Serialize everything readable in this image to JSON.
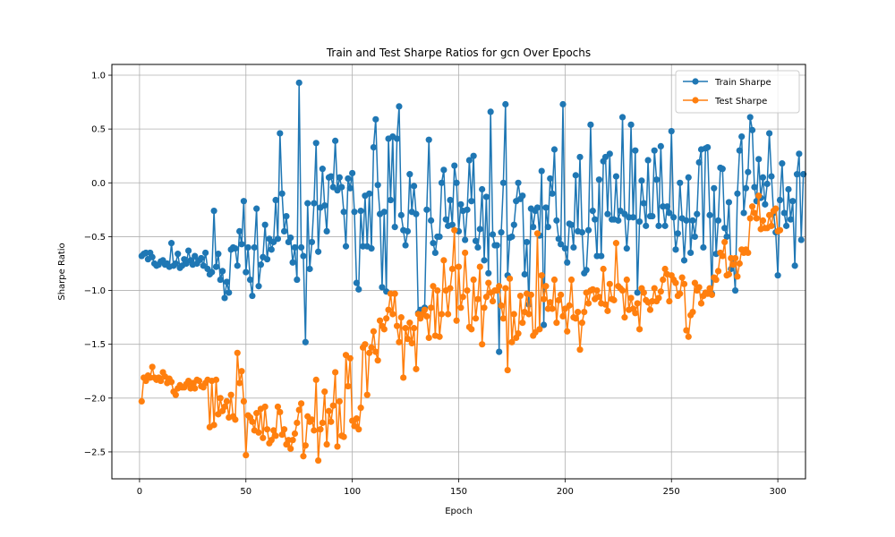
{
  "chart_data": {
    "type": "line",
    "title": "Train and Test Sharpe Ratios for gcn Over Epochs",
    "xlabel": "Epoch",
    "ylabel": "Sharpe Ratio",
    "xlim": [
      -13,
      313
    ],
    "ylim": [
      -2.75,
      1.1
    ],
    "xticks": [
      0,
      50,
      100,
      150,
      200,
      250,
      300
    ],
    "yticks": [
      -2.5,
      -2.0,
      -1.5,
      -1.0,
      -0.5,
      0.0,
      0.5,
      1.0
    ],
    "xtick_labels": [
      "0",
      "50",
      "100",
      "150",
      "200",
      "250",
      "300"
    ],
    "ytick_labels": [
      "−2.5",
      "−2.0",
      "−1.5",
      "−1.0",
      "−0.5",
      "0.0",
      "0.5",
      "1.0"
    ],
    "grid": true,
    "legend_position": "top-right",
    "x_start": 1,
    "series": [
      {
        "name": "Train Sharpe",
        "color": "#1f77b4",
        "values": [
          -0.68,
          -0.66,
          -0.65,
          -0.71,
          -0.65,
          -0.69,
          -0.75,
          -0.77,
          -0.76,
          -0.73,
          -0.72,
          -0.76,
          -0.75,
          -0.78,
          -0.56,
          -0.77,
          -0.75,
          -0.66,
          -0.79,
          -0.77,
          -0.71,
          -0.75,
          -0.63,
          -0.72,
          -0.76,
          -0.68,
          -0.75,
          -0.72,
          -0.7,
          -0.77,
          -0.65,
          -0.8,
          -0.85,
          -0.83,
          -0.26,
          -0.78,
          -0.66,
          -0.9,
          -0.82,
          -1.07,
          -0.92,
          -1.02,
          -0.62,
          -0.6,
          -0.61,
          -0.77,
          -0.45,
          -0.57,
          -0.17,
          -0.83,
          -0.6,
          -0.9,
          -1.05,
          -0.6,
          -0.24,
          -0.96,
          -0.76,
          -0.69,
          -0.39,
          -0.71,
          -0.52,
          -0.62,
          -0.55,
          -0.16,
          -0.52,
          0.46,
          -0.1,
          -0.45,
          -0.31,
          -0.55,
          -0.51,
          -0.74,
          -0.6,
          -0.9,
          0.93,
          -0.6,
          -0.68,
          -1.48,
          -0.19,
          -0.8,
          -0.55,
          -0.19,
          0.37,
          -0.64,
          -0.23,
          0.13,
          -0.21,
          -0.45,
          0.05,
          0.06,
          -0.04,
          0.39,
          -0.07,
          0.05,
          -0.04,
          -0.27,
          -0.59,
          0.04,
          -0.05,
          0.09,
          -0.27,
          -0.93,
          -0.99,
          -0.26,
          -0.59,
          -0.12,
          -0.59,
          -0.1,
          -0.61,
          0.33,
          0.59,
          -0.02,
          -0.29,
          -0.97,
          -0.27,
          -1.01,
          0.41,
          -0.16,
          0.43,
          -0.41,
          0.41,
          0.71,
          -0.3,
          -0.44,
          -0.58,
          -0.45,
          0.08,
          -0.27,
          -0.03,
          -0.29,
          -1.21,
          -1.18,
          -1.22,
          -1.16,
          -0.25,
          0.4,
          -0.35,
          -0.56,
          -0.65,
          -0.5,
          -0.5,
          0.0,
          0.12,
          -0.34,
          -0.4,
          -0.16,
          -0.39,
          0.16,
          0.0,
          -0.45,
          -0.2,
          -0.26,
          -0.53,
          -0.25,
          0.21,
          -0.17,
          0.25,
          -0.54,
          -0.6,
          -0.43,
          -0.06,
          -0.72,
          -0.13,
          -0.84,
          0.66,
          -0.48,
          -0.58,
          -0.58,
          -1.57,
          -0.46,
          0.0,
          0.73,
          -0.86,
          -0.51,
          -0.5,
          -0.39,
          -0.17,
          0.0,
          -0.15,
          -0.12,
          -0.85,
          -0.55,
          -1.13,
          -0.24,
          -0.41,
          -0.26,
          -0.23,
          -0.49,
          0.11,
          -1.32,
          -0.23,
          -0.41,
          0.04,
          -0.1,
          0.31,
          -0.35,
          -0.52,
          -0.57,
          0.73,
          -0.61,
          -0.74,
          -0.38,
          -0.39,
          -0.6,
          0.07,
          -0.45,
          0.24,
          -0.46,
          -0.84,
          -0.81,
          -0.44,
          0.54,
          -0.26,
          -0.34,
          -0.68,
          0.03,
          -0.68,
          0.2,
          0.24,
          -0.29,
          0.27,
          -0.34,
          -0.34,
          0.06,
          -0.35,
          -0.26,
          0.61,
          -0.29,
          -0.61,
          -0.32,
          0.54,
          -0.32,
          0.3,
          -1.02,
          -0.36,
          0.02,
          -0.19,
          -0.4,
          0.21,
          -0.31,
          -0.31,
          0.3,
          0.03,
          -0.4,
          0.34,
          -0.22,
          -0.4,
          -0.22,
          -0.28,
          0.48,
          -0.32,
          -0.62,
          -0.47,
          0.0,
          -0.33,
          -0.72,
          -0.35,
          0.05,
          -0.65,
          -0.35,
          -0.5,
          -0.29,
          0.19,
          0.31,
          -0.6,
          0.32,
          0.33,
          -0.3,
          -1.03,
          -0.05,
          -0.66,
          -0.35,
          0.14,
          0.13,
          -0.42,
          -0.5,
          -0.18,
          -0.8,
          -0.71,
          -1.0,
          -0.1,
          0.3,
          0.43,
          -0.28,
          -0.05,
          0.1,
          0.61,
          0.49,
          -0.04,
          -0.17,
          0.22,
          -0.14,
          0.05,
          -0.2,
          -0.01,
          0.46,
          0.06,
          -0.28,
          -0.46,
          -0.86,
          -0.16,
          0.18,
          -0.28,
          -0.4,
          -0.06,
          -0.34,
          -0.17,
          -0.77,
          0.08,
          0.27,
          -0.53,
          0.08
        ]
      },
      {
        "name": "Test Sharpe",
        "color": "#ff7f0e",
        "values": [
          -2.03,
          -1.81,
          -1.84,
          -1.79,
          -1.81,
          -1.71,
          -1.81,
          -1.83,
          -1.81,
          -1.84,
          -1.76,
          -1.8,
          -1.86,
          -1.82,
          -1.85,
          -1.94,
          -1.97,
          -1.91,
          -1.88,
          -1.9,
          -1.9,
          -1.87,
          -1.84,
          -1.91,
          -1.86,
          -1.91,
          -1.83,
          -1.84,
          -1.89,
          -1.9,
          -1.86,
          -1.83,
          -2.27,
          -1.84,
          -2.25,
          -1.83,
          -2.15,
          -2.0,
          -2.12,
          -2.08,
          -2.03,
          -2.18,
          -1.97,
          -2.17,
          -2.2,
          -1.58,
          -1.86,
          -1.75,
          -2.03,
          -2.53,
          -2.16,
          -2.18,
          -2.22,
          -2.3,
          -2.14,
          -2.32,
          -2.1,
          -2.37,
          -2.08,
          -2.29,
          -2.42,
          -2.39,
          -2.3,
          -2.35,
          -2.08,
          -2.13,
          -2.34,
          -2.29,
          -2.43,
          -2.39,
          -2.47,
          -2.39,
          -2.33,
          -2.23,
          -2.11,
          -2.05,
          -2.54,
          -2.44,
          -2.17,
          -2.22,
          -2.2,
          -2.3,
          -1.83,
          -2.58,
          -2.29,
          -2.23,
          -1.94,
          -2.43,
          -2.12,
          -2.22,
          -2.07,
          -1.76,
          -2.45,
          -2.03,
          -2.35,
          -2.36,
          -1.6,
          -1.89,
          -1.63,
          -2.21,
          -2.26,
          -2.19,
          -2.29,
          -2.09,
          -1.53,
          -1.5,
          -1.97,
          -1.58,
          -1.53,
          -1.38,
          -1.57,
          -1.65,
          -1.28,
          -1.33,
          -1.36,
          -1.26,
          -1.18,
          -1.03,
          -1.22,
          -1.03,
          -1.33,
          -1.48,
          -1.25,
          -1.81,
          -1.35,
          -1.45,
          -1.3,
          -1.49,
          -1.35,
          -1.73,
          -1.22,
          -1.26,
          -1.22,
          -1.18,
          -1.24,
          -1.44,
          -1.16,
          -0.96,
          -1.42,
          -1.0,
          -1.43,
          -1.22,
          -0.72,
          -1.0,
          -1.22,
          -0.98,
          -0.8,
          -0.44,
          -1.28,
          -0.78,
          -1.16,
          -1.06,
          -0.65,
          -1.0,
          -1.34,
          -1.36,
          -0.9,
          -1.26,
          -1.08,
          -0.78,
          -1.5,
          -1.16,
          -1.06,
          -0.93,
          -1.02,
          -1.1,
          -1.0,
          -1.0,
          -0.96,
          -1.14,
          -1.26,
          -0.98,
          -1.74,
          -0.89,
          -1.48,
          -1.22,
          -1.44,
          -1.4,
          -1.05,
          -1.3,
          -1.2,
          -1.03,
          -1.22,
          -1.04,
          -1.42,
          -1.39,
          -0.47,
          -1.36,
          -0.86,
          -1.08,
          -0.96,
          -1.17,
          -1.11,
          -1.17,
          -0.9,
          -1.3,
          -1.09,
          -1.04,
          -1.24,
          -1.17,
          -1.38,
          -1.14,
          -0.9,
          -1.25,
          -1.26,
          -1.2,
          -1.55,
          -1.3,
          -1.2,
          -1.02,
          -1.12,
          -1.0,
          -0.99,
          -1.08,
          -1.0,
          -1.06,
          -1.12,
          -0.8,
          -1.13,
          -1.19,
          -0.94,
          -1.08,
          -1.09,
          -0.56,
          -0.96,
          -0.98,
          -1.0,
          -1.25,
          -0.9,
          -1.18,
          -1.07,
          -1.17,
          -1.21,
          -1.12,
          -1.36,
          -0.98,
          -1.02,
          -1.09,
          -1.11,
          -1.18,
          -1.1,
          -0.98,
          -1.1,
          -1.07,
          -1.01,
          -0.9,
          -0.8,
          -0.85,
          -1.1,
          -0.86,
          -0.9,
          -0.93,
          -1.05,
          -1.03,
          -0.88,
          -0.94,
          -1.37,
          -1.43,
          -1.23,
          -1.2,
          -0.93,
          -1.0,
          -0.97,
          -1.12,
          -1.05,
          -1.02,
          -1.03,
          -0.98,
          -1.04,
          -0.88,
          -0.9,
          -0.82,
          -0.65,
          -0.68,
          -0.55,
          -0.86,
          -0.85,
          -0.7,
          -0.76,
          -0.7,
          -0.87,
          -0.75,
          -0.62,
          -0.65,
          -0.62,
          -0.65,
          -0.33,
          -0.22,
          -0.28,
          -0.33,
          -0.12,
          -0.43,
          -0.35,
          -0.42,
          -0.42,
          -0.3,
          -0.4,
          -0.26,
          -0.24,
          -0.45,
          -0.44
        ]
      }
    ]
  }
}
